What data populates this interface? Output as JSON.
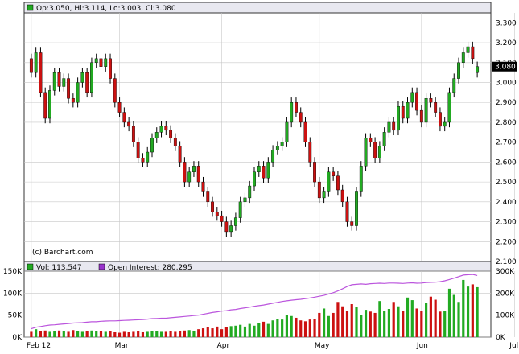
{
  "chart_data": [
    {
      "type": "candlestick",
      "header": {
        "ohlc_text": "Op:3.050, Hi:3.114, Lo:3.003, Cl:3.080"
      },
      "credit": "(c) Barchart.com",
      "last_price_label": "3.080",
      "last_price": 3.08,
      "ylim": [
        2.1,
        3.35
      ],
      "y_ticks": [
        "3.300",
        "3.200",
        "3.100",
        "3.000",
        "2.900",
        "2.800",
        "2.700",
        "2.600",
        "2.500",
        "2.400",
        "2.300",
        "2.200",
        "2.100"
      ],
      "y_tick_values": [
        3.3,
        3.2,
        3.1,
        3.0,
        2.9,
        2.8,
        2.7,
        2.6,
        2.5,
        2.4,
        2.3,
        2.2,
        2.1
      ],
      "grid": true,
      "colors": {
        "up": "#22aa22",
        "down": "#cc1111",
        "wick": "#000000",
        "grid": "#c8c8c8",
        "plot_bg": "#ffffff",
        "header_bg": "#e8e8f0"
      },
      "x_labels": [
        "Feb 12",
        "Mar",
        "Apr",
        "May",
        "Jun",
        "Jul"
      ],
      "x_label_index": [
        0,
        19,
        41,
        62,
        84,
        104
      ],
      "closes": [
        3.05,
        3.15,
        2.95,
        2.82,
        2.96,
        3.05,
        2.98,
        3.02,
        2.92,
        2.9,
        3.0,
        3.05,
        2.95,
        3.1,
        3.12,
        3.08,
        3.12,
        3.02,
        2.9,
        2.85,
        2.8,
        2.78,
        2.7,
        2.62,
        2.6,
        2.65,
        2.72,
        2.75,
        2.78,
        2.76,
        2.72,
        2.68,
        2.6,
        2.5,
        2.55,
        2.58,
        2.5,
        2.45,
        2.4,
        2.35,
        2.33,
        2.3,
        2.25,
        2.28,
        2.32,
        2.4,
        2.42,
        2.48,
        2.55,
        2.58,
        2.52,
        2.6,
        2.66,
        2.68,
        2.7,
        2.8,
        2.9,
        2.85,
        2.8,
        2.7,
        2.6,
        2.5,
        2.42,
        2.45,
        2.55,
        2.53,
        2.46,
        2.4,
        2.3,
        2.28,
        2.45,
        2.58,
        2.72,
        2.7,
        2.62,
        2.68,
        2.75,
        2.8,
        2.76,
        2.88,
        2.82,
        2.9,
        2.95,
        2.86,
        2.8,
        2.92,
        2.9,
        2.85,
        2.78,
        2.8,
        2.95,
        3.02,
        3.1,
        3.15,
        3.18,
        3.12,
        3.08
      ],
      "opens": [
        3.12,
        3.05,
        3.15,
        2.95,
        2.82,
        2.96,
        3.05,
        2.98,
        3.02,
        2.92,
        2.9,
        3.0,
        3.05,
        2.95,
        3.1,
        3.12,
        3.08,
        3.12,
        3.02,
        2.9,
        2.85,
        2.8,
        2.78,
        2.7,
        2.62,
        2.6,
        2.65,
        2.72,
        2.75,
        2.78,
        2.76,
        2.72,
        2.68,
        2.6,
        2.5,
        2.55,
        2.58,
        2.5,
        2.45,
        2.4,
        2.35,
        2.33,
        2.3,
        2.25,
        2.28,
        2.32,
        2.4,
        2.42,
        2.48,
        2.55,
        2.58,
        2.52,
        2.6,
        2.66,
        2.68,
        2.7,
        2.8,
        2.9,
        2.85,
        2.8,
        2.7,
        2.6,
        2.5,
        2.42,
        2.45,
        2.55,
        2.53,
        2.46,
        2.4,
        2.3,
        2.28,
        2.45,
        2.58,
        2.72,
        2.7,
        2.62,
        2.68,
        2.75,
        2.8,
        2.76,
        2.88,
        2.82,
        2.9,
        2.95,
        2.86,
        2.8,
        2.92,
        2.9,
        2.85,
        2.78,
        2.8,
        2.95,
        3.02,
        3.1,
        3.15,
        3.18,
        3.05
      ]
    },
    {
      "type": "bar+line",
      "legend": [
        {
          "label": "Vol: 113,547",
          "color": "#22aa22"
        },
        {
          "label": "Open Interest: 280,295",
          "color": "#9933cc"
        }
      ],
      "left_ticks": [
        "150K",
        "100K",
        "50K",
        "0K"
      ],
      "left_tick_values": [
        150000,
        100000,
        50000,
        0
      ],
      "right_ticks": [
        "300K",
        "200K",
        "100K",
        "0K"
      ],
      "right_tick_values": [
        300000,
        200000,
        100000,
        0
      ],
      "vol_ylim": [
        0,
        150000
      ],
      "oi_ylim": [
        0,
        300000
      ],
      "volume": [
        12000,
        18000,
        14000,
        15000,
        12000,
        13000,
        15000,
        14000,
        12000,
        16000,
        13000,
        12000,
        14000,
        15000,
        13000,
        14000,
        12000,
        13000,
        11000,
        10000,
        12000,
        11000,
        12000,
        13000,
        11000,
        12000,
        14000,
        13000,
        12000,
        12000,
        13000,
        12000,
        14000,
        15000,
        16000,
        14000,
        18000,
        20000,
        22000,
        20000,
        24000,
        18000,
        22000,
        25000,
        26000,
        28000,
        24000,
        30000,
        26000,
        32000,
        35000,
        30000,
        38000,
        42000,
        40000,
        50000,
        48000,
        44000,
        38000,
        36000,
        40000,
        42000,
        55000,
        65000,
        48000,
        55000,
        80000,
        70000,
        60000,
        75000,
        68000,
        50000,
        62000,
        58000,
        55000,
        82000,
        60000,
        64000,
        80000,
        70000,
        60000,
        90000,
        84000,
        65000,
        60000,
        78000,
        92000,
        85000,
        58000,
        60000,
        110000,
        96000,
        80000,
        130000,
        115000,
        120000,
        113547
      ],
      "open_interest": [
        38000,
        45000,
        48000,
        52000,
        55000,
        56000,
        58000,
        60000,
        62000,
        64000,
        65000,
        66000,
        68000,
        70000,
        70000,
        72000,
        73000,
        74000,
        74000,
        75000,
        76000,
        77000,
        78000,
        79000,
        80000,
        82000,
        84000,
        85000,
        86000,
        86000,
        88000,
        90000,
        92000,
        94000,
        96000,
        98000,
        100000,
        104000,
        108000,
        112000,
        115000,
        118000,
        120000,
        124000,
        126000,
        130000,
        133000,
        136000,
        140000,
        143000,
        146000,
        150000,
        154000,
        158000,
        162000,
        165000,
        168000,
        170000,
        172000,
        175000,
        178000,
        182000,
        186000,
        190000,
        196000,
        202000,
        210000,
        220000,
        230000,
        238000,
        240000,
        242000,
        240000,
        243000,
        244000,
        245000,
        244000,
        246000,
        246000,
        245000,
        244000,
        246000,
        247000,
        245000,
        246000,
        248000,
        249000,
        250000,
        252000,
        256000,
        262000,
        268000,
        275000,
        282000,
        284000,
        285000,
        280295
      ],
      "x_labels": [
        "Feb 12",
        "Mar",
        "Apr",
        "May",
        "Jun",
        "Jul"
      ],
      "x_label_index": [
        0,
        19,
        41,
        62,
        84,
        104
      ]
    }
  ]
}
